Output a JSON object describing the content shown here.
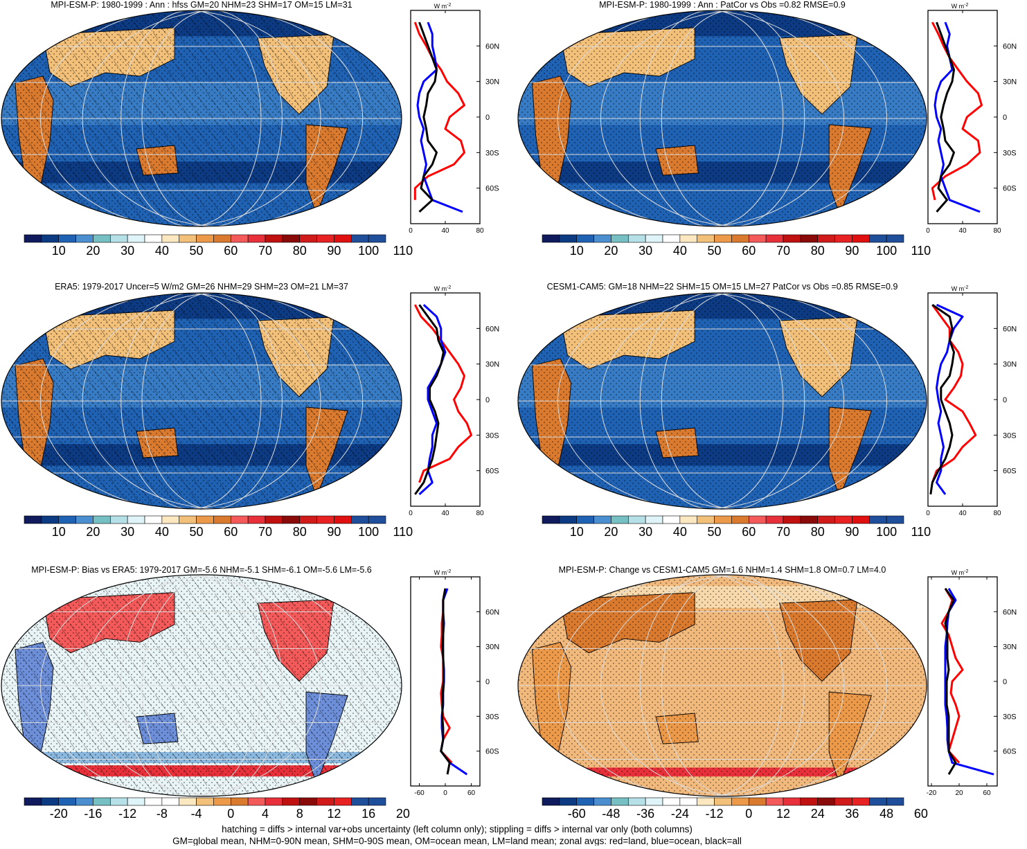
{
  "colors": {
    "abs_scale": [
      "#0f1b5c",
      "#0c3b84",
      "#1f62b4",
      "#4b8fd1",
      "#76c0c4",
      "#b6e0e8",
      "#def4f8",
      "#ffffff",
      "#fbe7c0",
      "#f3c079",
      "#ec9a4a",
      "#d97a2f",
      "#f55a5a",
      "#e8303a",
      "#c01010",
      "#8a0a0a",
      "#d11a1a",
      "#e82222",
      "#e11010",
      "#1f4e9a"
    ],
    "bias_scale": [
      "#0f1b5c",
      "#0c3b84",
      "#1f62b4",
      "#4b8fd1",
      "#76c0c4",
      "#b6e0e8",
      "#def4f8",
      "#ffffff",
      "#ffffff",
      "#fbe7c0",
      "#f3c079",
      "#ec9a4a",
      "#d97a2f",
      "#f55a5a",
      "#e8303a",
      "#c01010",
      "#8a0a0a",
      "#d11a1a",
      "#e82222",
      "#1f4e9a"
    ],
    "ocean_fill": "#1f62b4",
    "land_fill": "#e2b07a",
    "change_fill": "#f2b97c",
    "zonal_land": "#ff0000",
    "zonal_ocean": "#0000ff",
    "zonal_all": "#000000"
  },
  "units_label": "W m",
  "units_exponent": "-2",
  "lat_ticks": [
    "60N",
    "30N",
    "0",
    "30S",
    "60S"
  ],
  "panels": [
    {
      "title": "MPI-ESM-P: 1980-1999 : Ann : hfss GM=20 NHM=23 SHM=17 OM=15 LM=31",
      "colorbar_labels": [
        "10",
        "20",
        "30",
        "40",
        "50",
        "60",
        "70",
        "80",
        "90",
        "100",
        "110"
      ],
      "zonal_xticks": [
        "0",
        "40",
        "80"
      ],
      "zonal_xlim": [
        0,
        80
      ],
      "style": "abs",
      "hatched": true
    },
    {
      "title": "MPI-ESM-P: 1980-1999 : Ann : PatCor vs Obs =0.82 RMSE=0.9",
      "colorbar_labels": [
        "10",
        "20",
        "30",
        "40",
        "50",
        "60",
        "70",
        "80",
        "90",
        "100",
        "110"
      ],
      "zonal_xticks": [
        "0",
        "40",
        "80"
      ],
      "zonal_xlim": [
        0,
        80
      ],
      "style": "abs",
      "hatched": false
    },
    {
      "title": "ERA5: 1979-2017 Uncer=5 W/m2 GM=26 NHM=29 SHM=23 OM=21 LM=37",
      "colorbar_labels": [
        "10",
        "20",
        "30",
        "40",
        "50",
        "60",
        "70",
        "80",
        "90",
        "100",
        "110"
      ],
      "zonal_xticks": [
        "0",
        "40",
        "80"
      ],
      "zonal_xlim": [
        0,
        80
      ],
      "style": "abs",
      "hatched": true
    },
    {
      "title": "CESM1-CAM5: GM=18 NHM=22 SHM=15 OM=15 LM=27 PatCor vs Obs =0.85 RMSE=0.9",
      "colorbar_labels": [
        "10",
        "20",
        "30",
        "40",
        "50",
        "60",
        "70",
        "80",
        "90",
        "100",
        "110"
      ],
      "zonal_xticks": [
        "0",
        "40",
        "80"
      ],
      "zonal_xlim": [
        0,
        80
      ],
      "style": "abs",
      "hatched": false
    },
    {
      "title": "MPI-ESM-P: Bias vs ERA5: 1979-2017 GM=-5.6 NHM=-5.1 SHM=-6.1 OM=-5.6 LM=-5.6",
      "colorbar_labels": [
        "-20",
        "-16",
        "-12",
        "-8",
        "-4",
        "0",
        "4",
        "8",
        "12",
        "16",
        "20"
      ],
      "zonal_xticks": [
        "-60",
        "0",
        "60"
      ],
      "zonal_xlim": [
        -80,
        80
      ],
      "style": "bias",
      "hatched": true
    },
    {
      "title": "MPI-ESM-P: Change vs CESM1-CAM5 GM=1.6 NHM=1.4 SHM=1.8 OM=0.7 LM=4.0",
      "colorbar_labels": [
        "-60",
        "-48",
        "-36",
        "-24",
        "-12",
        "0",
        "12",
        "24",
        "36",
        "48",
        "60"
      ],
      "zonal_xticks": [
        "-20",
        "20",
        "60"
      ],
      "zonal_xlim": [
        -25,
        75
      ],
      "style": "change",
      "hatched": false
    }
  ],
  "footer": {
    "line1": "hatching = diffs > internal var+obs uncertainty (left column only); stippling = diffs > internal var only (both columns)",
    "line2": "GM=global mean, NHM=0-90N mean, SHM=0-90S mean, OM=ocean mean, LM=land mean; zonal avgs: red=land, blue=ocean, black=all"
  },
  "chart_data": [
    {
      "type": "line",
      "title": "MPI-ESM-P: 1980-1999 : Ann : hfss GM=20 NHM=23 SHM=17 OM=15 LM=31",
      "x_axis": "W m-2",
      "y_axis": "latitude",
      "xlim": [
        0,
        80
      ],
      "lat": [
        80,
        70,
        60,
        50,
        40,
        30,
        20,
        10,
        0,
        -10,
        -20,
        -30,
        -40,
        -50,
        -60,
        -70,
        -80
      ],
      "series": [
        {
          "name": "land",
          "values": [
            5,
            10,
            18,
            25,
            35,
            42,
            55,
            62,
            45,
            40,
            58,
            62,
            50,
            20,
            5,
            5,
            null
          ]
        },
        {
          "name": "ocean",
          "values": [
            20,
            25,
            25,
            28,
            30,
            15,
            10,
            8,
            10,
            15,
            12,
            15,
            18,
            15,
            20,
            25,
            60
          ]
        },
        {
          "name": "all",
          "values": [
            10,
            15,
            20,
            25,
            30,
            28,
            20,
            18,
            15,
            18,
            20,
            30,
            25,
            15,
            12,
            25,
            10
          ]
        }
      ]
    },
    {
      "type": "line",
      "title": "MPI-ESM-P: 1980-1999 : Ann : PatCor vs Obs =0.82 RMSE=0.9",
      "x_axis": "W m-2",
      "y_axis": "latitude",
      "xlim": [
        0,
        80
      ],
      "lat": [
        80,
        70,
        60,
        50,
        40,
        30,
        20,
        10,
        0,
        -10,
        -20,
        -30,
        -40,
        -50,
        -60,
        -70,
        -80
      ],
      "series": [
        {
          "name": "land",
          "values": [
            5,
            12,
            18,
            25,
            35,
            45,
            58,
            62,
            45,
            40,
            58,
            60,
            45,
            20,
            5,
            8,
            null
          ]
        },
        {
          "name": "ocean",
          "values": [
            20,
            25,
            22,
            25,
            28,
            15,
            10,
            8,
            10,
            15,
            12,
            15,
            18,
            15,
            20,
            25,
            60
          ]
        },
        {
          "name": "all",
          "values": [
            10,
            15,
            20,
            25,
            30,
            28,
            22,
            18,
            15,
            18,
            20,
            30,
            25,
            15,
            12,
            22,
            10
          ]
        }
      ]
    },
    {
      "type": "line",
      "title": "ERA5: 1979-2017 Uncer=5 W/m2 GM=26 NHM=29 SHM=23 OM=21 LM=37",
      "x_axis": "W m-2",
      "y_axis": "latitude",
      "xlim": [
        0,
        80
      ],
      "lat": [
        80,
        70,
        60,
        50,
        40,
        30,
        20,
        10,
        0,
        -10,
        -20,
        -30,
        -40,
        -50,
        -60,
        -70,
        -80
      ],
      "series": [
        {
          "name": "land",
          "values": [
            5,
            12,
            25,
            35,
            45,
            55,
            62,
            58,
            50,
            55,
            65,
            70,
            55,
            45,
            15,
            10,
            null
          ]
        },
        {
          "name": "ocean",
          "values": [
            15,
            30,
            35,
            35,
            40,
            35,
            28,
            20,
            20,
            25,
            30,
            25,
            25,
            22,
            20,
            25,
            10
          ]
        },
        {
          "name": "all",
          "values": [
            10,
            20,
            30,
            32,
            38,
            35,
            30,
            22,
            22,
            28,
            32,
            30,
            28,
            25,
            20,
            15,
            5
          ]
        }
      ]
    },
    {
      "type": "line",
      "title": "CESM1-CAM5: GM=18 NHM=22 SHM=15 OM=15 LM=27 PatCor vs Obs =0.85 RMSE=0.9",
      "x_axis": "W m-2",
      "y_axis": "latitude",
      "xlim": [
        0,
        80
      ],
      "lat": [
        80,
        70,
        60,
        50,
        40,
        30,
        20,
        10,
        0,
        -10,
        -20,
        -30,
        -40,
        -50,
        -60,
        -70,
        -80
      ],
      "series": [
        {
          "name": "land",
          "values": [
            5,
            15,
            25,
            25,
            35,
            40,
            38,
            30,
            20,
            40,
            48,
            55,
            40,
            30,
            10,
            5,
            null
          ]
        },
        {
          "name": "ocean",
          "values": [
            10,
            40,
            30,
            25,
            22,
            15,
            12,
            10,
            12,
            15,
            12,
            15,
            18,
            15,
            15,
            10,
            20
          ]
        },
        {
          "name": "all",
          "values": [
            5,
            25,
            28,
            25,
            30,
            28,
            25,
            15,
            15,
            20,
            25,
            28,
            25,
            20,
            12,
            5,
            3
          ]
        }
      ]
    },
    {
      "type": "line",
      "title": "MPI-ESM-P: Bias vs ERA5: 1979-2017 GM=-5.6 NHM=-5.1 SHM=-6.1 OM=-5.6 LM=-5.6",
      "x_axis": "W m-2",
      "y_axis": "latitude",
      "xlim": [
        -80,
        80
      ],
      "lat": [
        80,
        70,
        60,
        50,
        40,
        30,
        20,
        10,
        0,
        -10,
        -20,
        -30,
        -40,
        -50,
        -60,
        -70,
        -80
      ],
      "series": [
        {
          "name": "land",
          "values": [
            0,
            -5,
            -5,
            -8,
            -8,
            -10,
            -5,
            -5,
            -5,
            -10,
            -8,
            -5,
            10,
            -5,
            -10,
            15,
            null
          ]
        },
        {
          "name": "ocean",
          "values": [
            5,
            -5,
            -5,
            -3,
            -5,
            -5,
            -5,
            -3,
            -3,
            -5,
            -5,
            -8,
            -8,
            -5,
            -10,
            10,
            50
          ]
        },
        {
          "name": "all",
          "values": [
            0,
            -5,
            -5,
            -5,
            -5,
            -6,
            -5,
            -4,
            -4,
            -6,
            -6,
            -7,
            -5,
            -5,
            -10,
            10,
            5
          ]
        }
      ]
    },
    {
      "type": "line",
      "title": "MPI-ESM-P: Change vs CESM1-CAM5 GM=1.6 NHM=1.4 SHM=1.8 OM=0.7 LM=4.0",
      "x_axis": "W m-2",
      "y_axis": "latitude",
      "xlim": [
        -25,
        75
      ],
      "lat": [
        80,
        70,
        60,
        50,
        40,
        30,
        20,
        10,
        0,
        -10,
        -20,
        -30,
        -40,
        -50,
        -60,
        -70,
        -80
      ],
      "series": [
        {
          "name": "land",
          "values": [
            0,
            10,
            5,
            -5,
            5,
            10,
            15,
            25,
            10,
            8,
            15,
            20,
            15,
            10,
            5,
            20,
            null
          ]
        },
        {
          "name": "ocean",
          "values": [
            5,
            15,
            5,
            3,
            2,
            0,
            0,
            0,
            0,
            0,
            0,
            2,
            3,
            3,
            5,
            10,
            70
          ]
        },
        {
          "name": "all",
          "values": [
            0,
            12,
            5,
            0,
            3,
            3,
            3,
            5,
            2,
            2,
            2,
            5,
            5,
            5,
            5,
            15,
            5
          ]
        }
      ]
    }
  ]
}
